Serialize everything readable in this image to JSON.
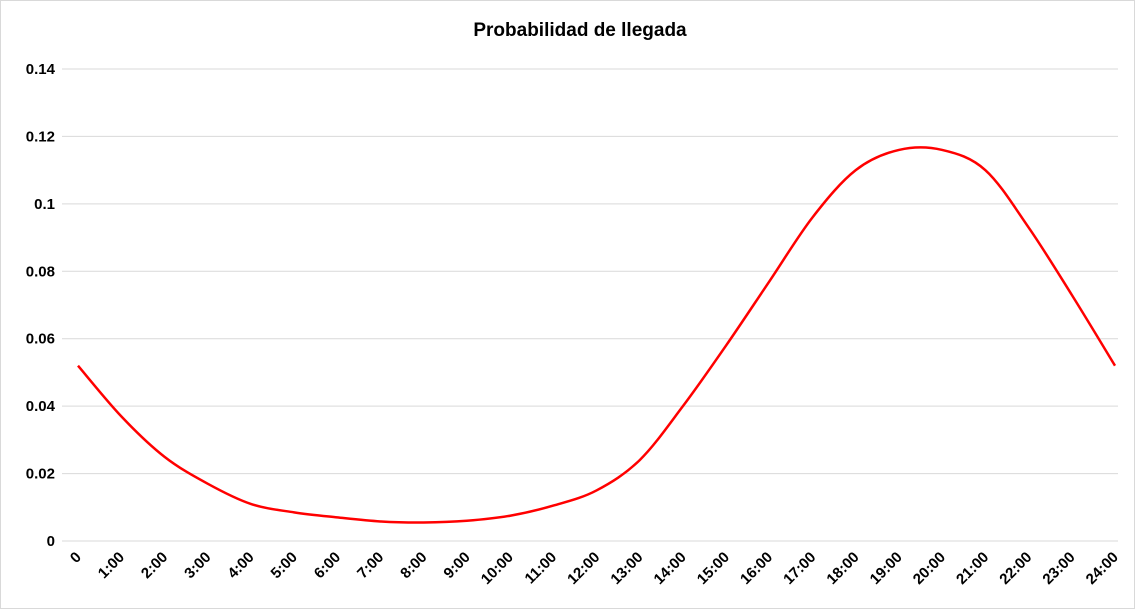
{
  "chart_data": {
    "type": "line",
    "title": "Probabilidad de llegada",
    "categories": [
      "0",
      "1:00",
      "2:00",
      "3:00",
      "4:00",
      "5:00",
      "6:00",
      "7:00",
      "8:00",
      "9:00",
      "10:00",
      "11:00",
      "12:00",
      "13:00",
      "14:00",
      "15:00",
      "16:00",
      "17:00",
      "18:00",
      "19:00",
      "20:00",
      "21:00",
      "22:00",
      "23:00",
      "24:00"
    ],
    "series": [
      {
        "name": "Probabilidad de llegada",
        "color": "#ff0000",
        "values": [
          0.052,
          0.037,
          0.025,
          0.017,
          0.011,
          0.0085,
          0.007,
          0.0058,
          0.0055,
          0.006,
          0.0075,
          0.0105,
          0.015,
          0.024,
          0.04,
          0.058,
          0.077,
          0.096,
          0.11,
          0.116,
          0.116,
          0.11,
          0.093,
          0.073,
          0.052
        ]
      }
    ],
    "ylim": [
      0,
      0.14
    ],
    "yticks": [
      0,
      0.02,
      0.04,
      0.06,
      0.08,
      0.1,
      0.12,
      0.14
    ],
    "grid": true
  }
}
